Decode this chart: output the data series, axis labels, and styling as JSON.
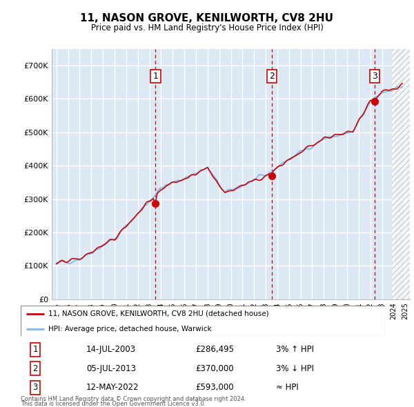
{
  "title": "11, NASON GROVE, KENILWORTH, CV8 2HU",
  "subtitle": "Price paid vs. HM Land Registry's House Price Index (HPI)",
  "background_color": "#dce9f5",
  "grid_color": "#ffffff",
  "legend_label_red": "11, NASON GROVE, KENILWORTH, CV8 2HU (detached house)",
  "legend_label_blue": "HPI: Average price, detached house, Warwick",
  "transactions": [
    {
      "num": 1,
      "date": "14-JUL-2003",
      "price": "£286,495",
      "rel": "3% ↑ HPI",
      "year": 2003.53,
      "value": 286495
    },
    {
      "num": 2,
      "date": "05-JUL-2013",
      "price": "£370,000",
      "rel": "3% ↓ HPI",
      "year": 2013.51,
      "value": 370000
    },
    {
      "num": 3,
      "date": "12-MAY-2022",
      "price": "£593,000",
      "rel": "≈ HPI",
      "year": 2022.36,
      "value": 593000
    }
  ],
  "footer1": "Contains HM Land Registry data © Crown copyright and database right 2024.",
  "footer2": "This data is licensed under the Open Government Licence v3.0.",
  "ylim": [
    0,
    750000
  ],
  "yticks": [
    0,
    100000,
    200000,
    300000,
    400000,
    500000,
    600000,
    700000
  ],
  "ytick_labels": [
    "£0",
    "£100K",
    "£200K",
    "£300K",
    "£400K",
    "£500K",
    "£600K",
    "£700K"
  ],
  "hpi_color": "#7ab8e8",
  "price_color": "#cc0000",
  "vline_color": "#cc0000",
  "hatch_start_year": 2023.83,
  "xlim_left": 1994.6,
  "xlim_right": 2025.4
}
